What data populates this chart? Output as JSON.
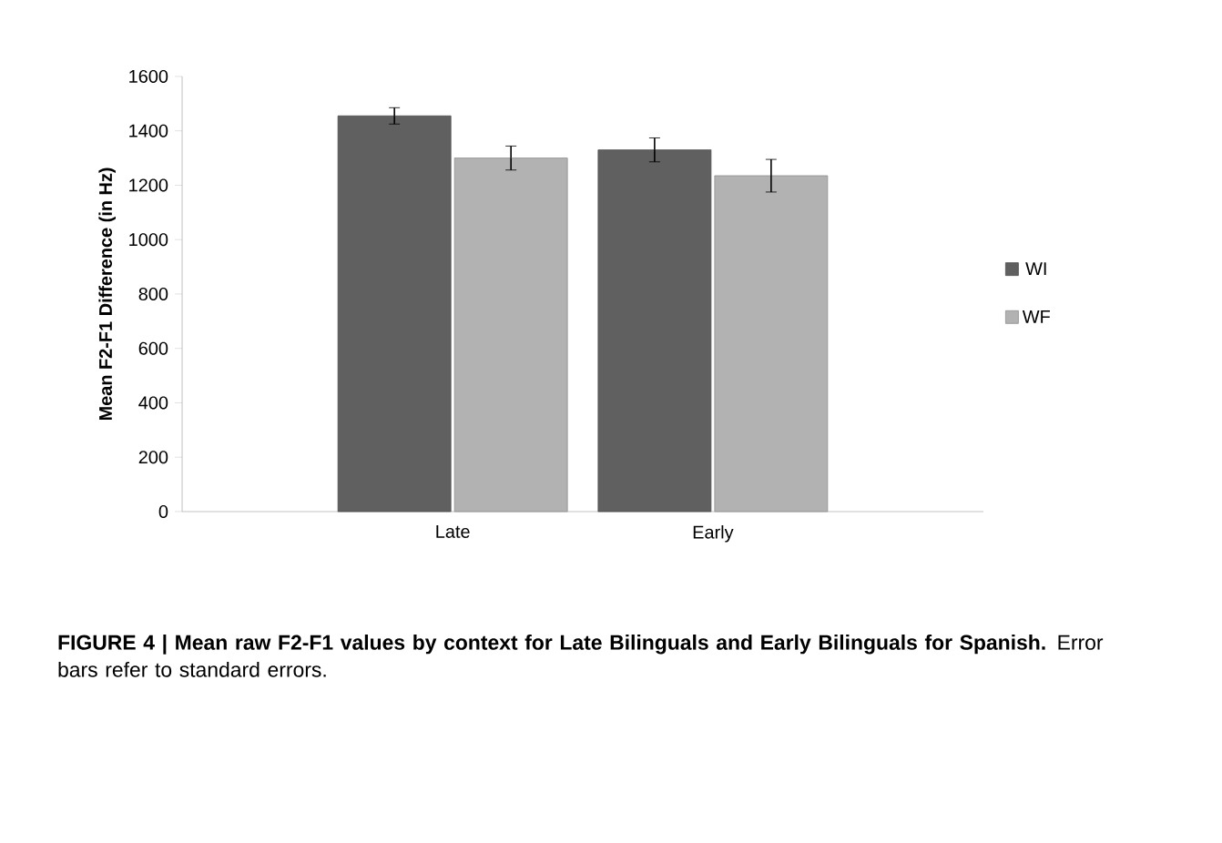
{
  "chart_data": {
    "type": "bar",
    "ylabel": "Mean F2-F1 Difference (in Hz)",
    "categories": [
      "Late",
      "Early"
    ],
    "series": [
      {
        "name": "WI",
        "color": "#606060",
        "values": [
          1455,
          1330
        ],
        "errors": [
          30,
          44
        ]
      },
      {
        "name": "WF",
        "color": "#b2b2b2",
        "values": [
          1300,
          1235
        ],
        "errors": [
          44,
          60
        ]
      }
    ],
    "ylim": [
      0,
      1600
    ],
    "yticks": [
      0,
      200,
      400,
      600,
      800,
      1000,
      1200,
      1400,
      1600
    ],
    "legend": "right",
    "grid": false,
    "annotations": [
      "**FIGURE 4 | Mean raw F2-F1 values by context for Late Bilinguals and Early Bilinguals for Spanish.** Error bars refer to standard errors."
    ]
  }
}
